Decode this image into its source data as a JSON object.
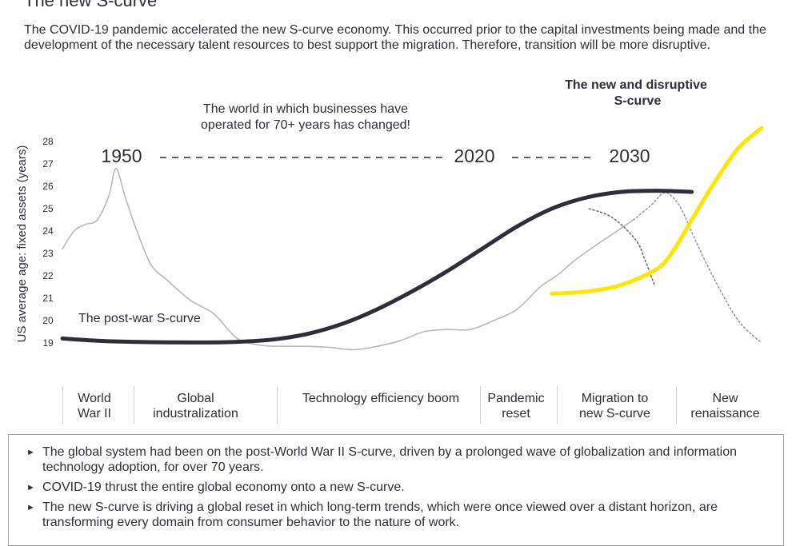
{
  "page": {
    "title": "The new S-curve",
    "intro": "The COVID-19 pandemic accelerated the new S-curve economy. This occurred prior to the capital investments being made and the development of the necessary talent resources to best support the migration. Therefore, transition will be more disruptive."
  },
  "chart_data": {
    "type": "line",
    "ylabel": "US average age: fixed assets (years)",
    "y_ticks": [
      "28",
      "27",
      "26",
      "25",
      "24",
      "23",
      "22",
      "21",
      "20",
      "19"
    ],
    "ylim": [
      18.6,
      28.3
    ],
    "grid": false,
    "series": [
      {
        "name": "The post-war S-curve",
        "style": "solid-thick-dark",
        "color": "#2e2e38",
        "x": [
          0,
          15,
          30,
          45,
          60,
          75,
          90,
          105,
          120,
          135,
          150,
          165,
          180,
          195,
          210,
          225,
          240,
          255,
          270
        ],
        "y": [
          19.2,
          19.1,
          19.05,
          19.03,
          19.02,
          19.05,
          19.15,
          19.4,
          19.85,
          20.5,
          21.3,
          22.2,
          23.2,
          24.2,
          25.0,
          25.5,
          25.75,
          25.8,
          25.75
        ]
      },
      {
        "name": "The new and disruptive S-curve",
        "style": "solid-thick-yellow",
        "color": "#ffe600",
        "x": [
          210,
          225,
          240,
          255,
          262,
          270,
          280,
          290,
          300
        ],
        "y": [
          21.2,
          21.3,
          21.6,
          22.3,
          23.1,
          24.5,
          26.2,
          27.7,
          28.6
        ]
      },
      {
        "style": "solid-thin-grey",
        "color": "#b8b8bd",
        "x": [
          0,
          5,
          10,
          15,
          20,
          23,
          27,
          32,
          38,
          45,
          55,
          65,
          75,
          85,
          95,
          105,
          115,
          125,
          135,
          145,
          155,
          165,
          175,
          185,
          195,
          205,
          212,
          220,
          228,
          238,
          245
        ],
        "y": [
          23.2,
          24.0,
          24.3,
          24.5,
          25.6,
          26.8,
          25.5,
          24.0,
          22.5,
          21.8,
          20.9,
          20.3,
          19.2,
          18.9,
          18.85,
          18.85,
          18.8,
          18.7,
          18.85,
          19.1,
          19.5,
          19.6,
          19.6,
          20.0,
          20.5,
          21.5,
          22.0,
          22.7,
          23.3,
          24.0,
          24.5
        ]
      },
      {
        "style": "dotted-grey",
        "color": "#9a9aa2",
        "x": [
          245,
          252,
          258,
          262,
          266,
          272,
          280,
          290,
          300
        ],
        "y": [
          24.5,
          25.1,
          25.7,
          25.5,
          24.9,
          23.5,
          21.8,
          20.0,
          19.0
        ]
      },
      {
        "style": "dotted-dark",
        "color": "#6c6c74",
        "x": [
          226,
          236,
          246,
          250,
          254
        ],
        "y": [
          25.0,
          24.6,
          23.6,
          22.7,
          21.6
        ]
      }
    ],
    "annotations": {
      "post_war_label": "The post-war S-curve",
      "new_curve_label_line1": "The new and disruptive",
      "new_curve_label_line2": "S-curve",
      "world_text_line1": "The world in which businesses have",
      "world_text_line2": "operated for 70+ years has changed!",
      "year_1950": "1950",
      "year_2020": "2020",
      "year_2030": "2030"
    },
    "eras": [
      {
        "line1": "World",
        "line2": "War II"
      },
      {
        "line1": "Global",
        "line2": "industralization"
      },
      {
        "line1": "Technology efficiency boom",
        "line2": ""
      },
      {
        "line1": "Pandemic",
        "line2": "reset"
      },
      {
        "line1": "Migration to",
        "line2": "new S-curve"
      },
      {
        "line1": "New",
        "line2": "renaissance"
      }
    ]
  },
  "notes": [
    "The global system had been on the post-World War II S-curve, driven by a prolonged wave of globalization and information technology adoption, for over 70 years.",
    "COVID-19 thrust the entire global economy onto a new S-curve.",
    "The new S-curve is driving a global reset in which long-term trends, which were once viewed over a distant horizon, are transforming every domain from consumer behavior to the nature of work."
  ]
}
